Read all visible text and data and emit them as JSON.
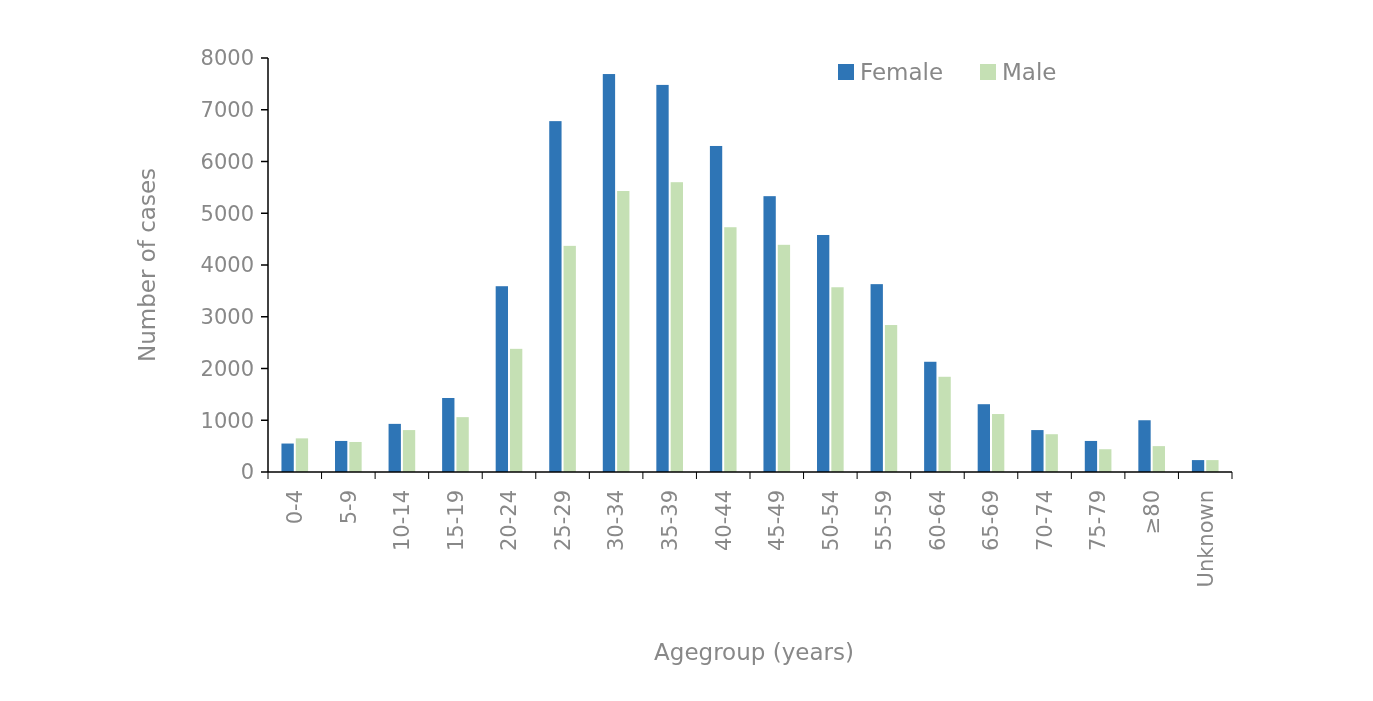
{
  "chart_data": {
    "type": "bar",
    "xlabel": "Agegroup  (years)",
    "ylabel": "Number of cases",
    "categories": [
      "0-4",
      "5-9",
      "10-14",
      "15-19",
      "20-24",
      "25-29",
      "30-34",
      "35-39",
      "40-44",
      "45-49",
      "50-54",
      "55-59",
      "60-64",
      "65-69",
      "70-74",
      "75-79",
      "≥80",
      "Unknown"
    ],
    "series": [
      {
        "name": "Female",
        "color": "#2e75b6",
        "values": [
          550,
          600,
          930,
          1430,
          3590,
          6780,
          7690,
          7480,
          6300,
          5330,
          4580,
          3630,
          2130,
          1310,
          810,
          600,
          1000,
          230
        ]
      },
      {
        "name": "Male",
        "color": "#c5e0b4",
        "values": [
          650,
          580,
          810,
          1060,
          2380,
          4370,
          5430,
          5600,
          4730,
          4390,
          3570,
          2840,
          1840,
          1120,
          730,
          440,
          500,
          230
        ]
      }
    ],
    "ylim": [
      0,
      8000
    ],
    "yticks": [
      0,
      1000,
      2000,
      3000,
      4000,
      5000,
      6000,
      7000,
      8000
    ],
    "grid": false,
    "legend": "top right"
  }
}
